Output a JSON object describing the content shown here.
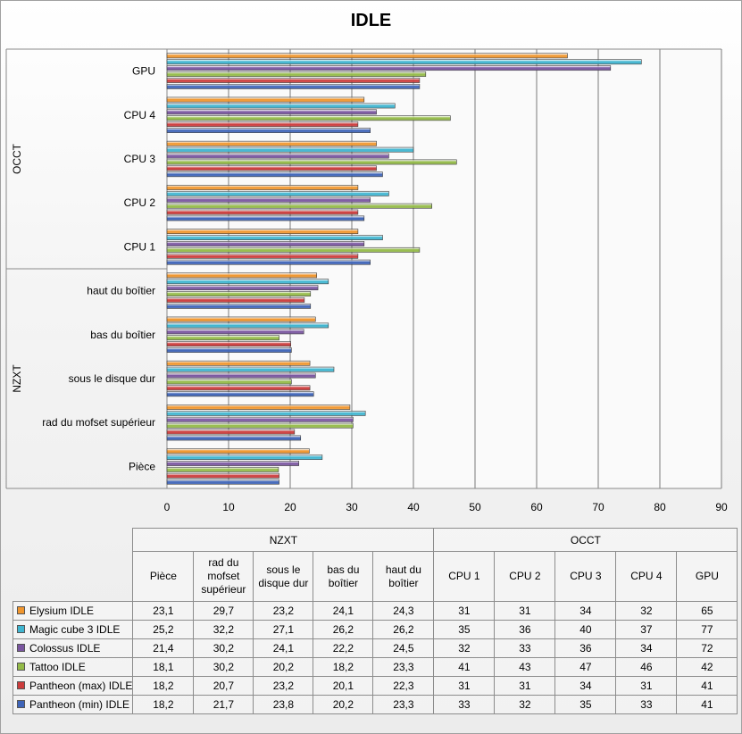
{
  "chart_data": {
    "type": "bar",
    "orientation": "horizontal",
    "title": "IDLE",
    "xlim": [
      0,
      90
    ],
    "x_ticks": [
      0,
      10,
      20,
      30,
      40,
      50,
      60,
      70,
      80,
      90
    ],
    "grid": true,
    "groups": [
      {
        "name": "NZXT",
        "categories": [
          "Pièce",
          "rad du mofset supérieur",
          "sous le disque dur",
          "bas du boîtier",
          "haut du boîtier"
        ]
      },
      {
        "name": "OCCT",
        "categories": [
          "CPU 1",
          "CPU 2",
          "CPU 3",
          "CPU 4",
          "GPU"
        ]
      }
    ],
    "categories": [
      "Pièce",
      "rad du mofset supérieur",
      "sous le disque dur",
      "bas du boîtier",
      "haut du boîtier",
      "CPU 1",
      "CPU 2",
      "CPU 3",
      "CPU 4",
      "GPU"
    ],
    "table_headers": [
      "Pièce",
      "rad du mofset supérieur",
      "sous le disque dur",
      "bas du boîtier",
      "haut du boîtier",
      "CPU 1",
      "CPU 2",
      "CPU 3",
      "CPU 4",
      "GPU"
    ],
    "series": [
      {
        "name": "Elysium IDLE",
        "color": "#f0962e",
        "values": [
          23.1,
          29.7,
          23.2,
          24.1,
          24.3,
          31,
          31,
          34,
          32,
          65
        ],
        "labels": [
          "23,1",
          "29,7",
          "23,2",
          "24,1",
          "24,3",
          "31",
          "31",
          "34",
          "32",
          "65"
        ]
      },
      {
        "name": "Magic cube 3 IDLE",
        "color": "#3fb5d0",
        "values": [
          25.2,
          32.2,
          27.1,
          26.2,
          26.2,
          35,
          36,
          40,
          37,
          77
        ],
        "labels": [
          "25,2",
          "32,2",
          "27,1",
          "26,2",
          "26,2",
          "35",
          "36",
          "40",
          "37",
          "77"
        ]
      },
      {
        "name": "Colossus IDLE",
        "color": "#7a56a0",
        "values": [
          21.4,
          30.2,
          24.1,
          22.2,
          24.5,
          32,
          33,
          36,
          34,
          72
        ],
        "labels": [
          "21,4",
          "30,2",
          "24,1",
          "22,2",
          "24,5",
          "32",
          "33",
          "36",
          "34",
          "72"
        ]
      },
      {
        "name": "Tattoo IDLE",
        "color": "#94bb48",
        "values": [
          18.1,
          30.2,
          20.2,
          18.2,
          23.3,
          41,
          43,
          47,
          46,
          42
        ],
        "labels": [
          "18,1",
          "30,2",
          "20,2",
          "18,2",
          "23,3",
          "41",
          "43",
          "47",
          "46",
          "42"
        ]
      },
      {
        "name": "Pantheon (max) IDLE",
        "color": "#cc3c3c",
        "values": [
          18.2,
          20.7,
          23.2,
          20.1,
          22.3,
          31,
          31,
          34,
          31,
          41
        ],
        "labels": [
          "18,2",
          "20,7",
          "23,2",
          "20,1",
          "22,3",
          "31",
          "31",
          "34",
          "31",
          "41"
        ]
      },
      {
        "name": "Pantheon (min) IDLE",
        "color": "#3e64b8",
        "values": [
          18.2,
          21.7,
          23.8,
          20.2,
          23.3,
          33,
          32,
          35,
          33,
          41
        ],
        "labels": [
          "18,2",
          "21,7",
          "23,8",
          "20,2",
          "23,3",
          "33",
          "32",
          "35",
          "33",
          "41"
        ]
      }
    ]
  }
}
